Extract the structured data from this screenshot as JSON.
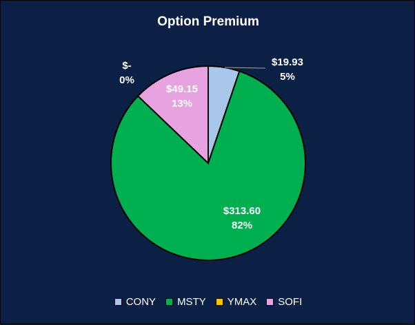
{
  "chart_data": {
    "type": "pie",
    "title": "Option Premium",
    "slices": [
      {
        "name": "CONY",
        "value": 19.93,
        "value_label": "$19.93",
        "percent_label": "5%",
        "color": "#a9c7ea"
      },
      {
        "name": "MSTY",
        "value": 313.6,
        "value_label": "$313.60",
        "percent_label": "82%",
        "color": "#00b050"
      },
      {
        "name": "YMAX",
        "value": 0,
        "value_label": "$-",
        "percent_label": "0%",
        "color": "#ffc000"
      },
      {
        "name": "SOFI",
        "value": 49.15,
        "value_label": "$49.15",
        "percent_label": "13%",
        "color": "#e6a3e0"
      }
    ],
    "legend_position": "bottom"
  }
}
